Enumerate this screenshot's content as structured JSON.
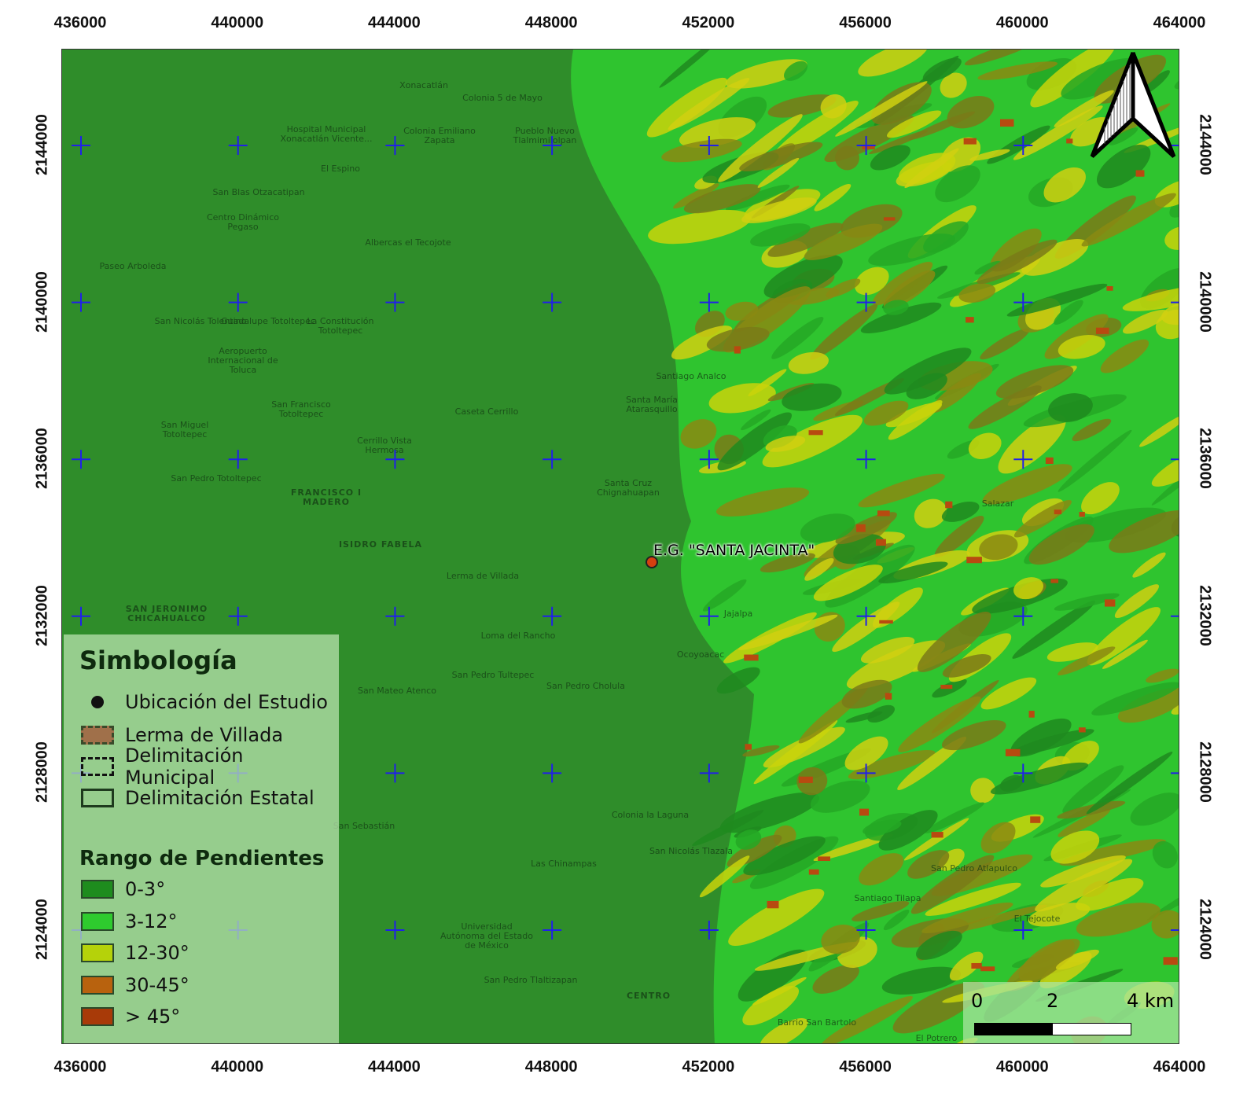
{
  "axes": {
    "x_ticks": [
      "436000",
      "440000",
      "444000",
      "448000",
      "452000",
      "456000",
      "460000",
      "464000"
    ],
    "y_ticks": [
      "2144000",
      "2140000",
      "2136000",
      "2132000",
      "2128000",
      "2124000"
    ]
  },
  "map": {
    "site_label": "E.G. \"SANTA JACINTA\"",
    "places": [
      "Xonacatlán",
      "Colonia 5 de Mayo",
      "Hospital Municipal Xonacatlán Vicente...",
      "Colonia Emiliano Zapata",
      "Pueblo Nuevo Tlalmimilolpan",
      "El Espino",
      "San Blas Otzacatipan",
      "Centro Dinámico Pegaso",
      "Albercas el Tecojote",
      "Paseo Arboleda",
      "San Nicolás Tolentino",
      "Guadalupe Totoltepec",
      "La Constitución Totoltepec",
      "Aeropuerto Internacional de Toluca",
      "San Francisco Totoltepec",
      "San Miguel Totoltepec",
      "Cerrillo Vista Hermosa",
      "Caseta Cerrillo",
      "San Pedro Totoltepec",
      "FRANCISCO I MADERO",
      "ISIDRO FABELA",
      "SAN JERONIMO CHICAHUALCO",
      "Lerma de Villada",
      "Loma del Rancho",
      "San Pedro Tultepec",
      "San Pedro Cholula",
      "San Mateo Atenco",
      "Las Chinampas",
      "Universidad Autónoma del Estado de México",
      "San Pedro Tlaltizapan",
      "Colonia la Laguna",
      "San Nicolás Tlazala",
      "Santa Cruz Chignahuapan",
      "Santiago Analco",
      "Santa María Atarasquillo",
      "Jajalpa",
      "Ocoyoacac",
      "El Tejocote",
      "Salazar",
      "San Pedro Atlapulco",
      "Santiago Tilapa",
      "Barrio San Bartolo",
      "El Potrero",
      "CENTRO",
      "San Sebastián"
    ]
  },
  "legend": {
    "title": "Simbología",
    "items": [
      {
        "label": "Ubicación del Estudio",
        "icon": "filled-circle"
      },
      {
        "label": "Lerma de Villada",
        "color": "#a0704a"
      },
      {
        "label": "Delimitación Municipal",
        "icon": "dashed-rectangle"
      },
      {
        "label": "Delimitación Estatal",
        "icon": "solid-rectangle"
      }
    ],
    "slope_title": "Rango de Pendientes",
    "slopes": [
      {
        "label": "0-3°",
        "color": "#1e8c1e"
      },
      {
        "label": "3-12°",
        "color": "#2ecb2e"
      },
      {
        "label": "12-30°",
        "color": "#b5d20a"
      },
      {
        "label": "30-45°",
        "color": "#b8620e"
      },
      {
        "label": "> 45°",
        "color": "#a83a08"
      }
    ]
  },
  "scale_bar": {
    "labels": [
      "0",
      "2",
      "4 km"
    ]
  },
  "north_arrow": "north-arrow-icon",
  "colors": {
    "grid_cross": "#2020e8",
    "site": "#d6400f"
  }
}
